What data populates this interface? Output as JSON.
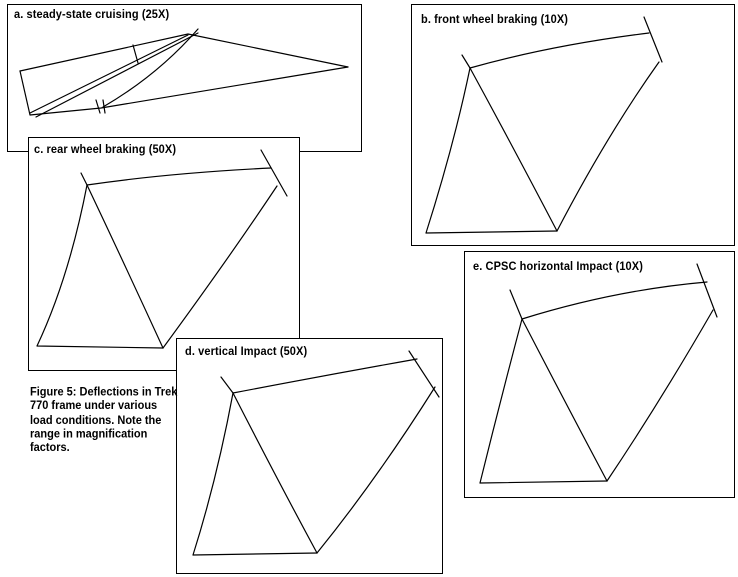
{
  "panels": {
    "a": {
      "label": "a. steady-state cruising (25X)"
    },
    "b": {
      "label": "b. front wheel braking (10X)"
    },
    "c": {
      "label": "c. rear wheel braking (50X)"
    },
    "d": {
      "label": "d. vertical Impact (50X)"
    },
    "e": {
      "label": "e. CPSC horizontal Impact (10X)"
    }
  },
  "caption": "Figure 5: Deflections in Trek 770 frame under various load conditions. Note the range in magnification factors."
}
